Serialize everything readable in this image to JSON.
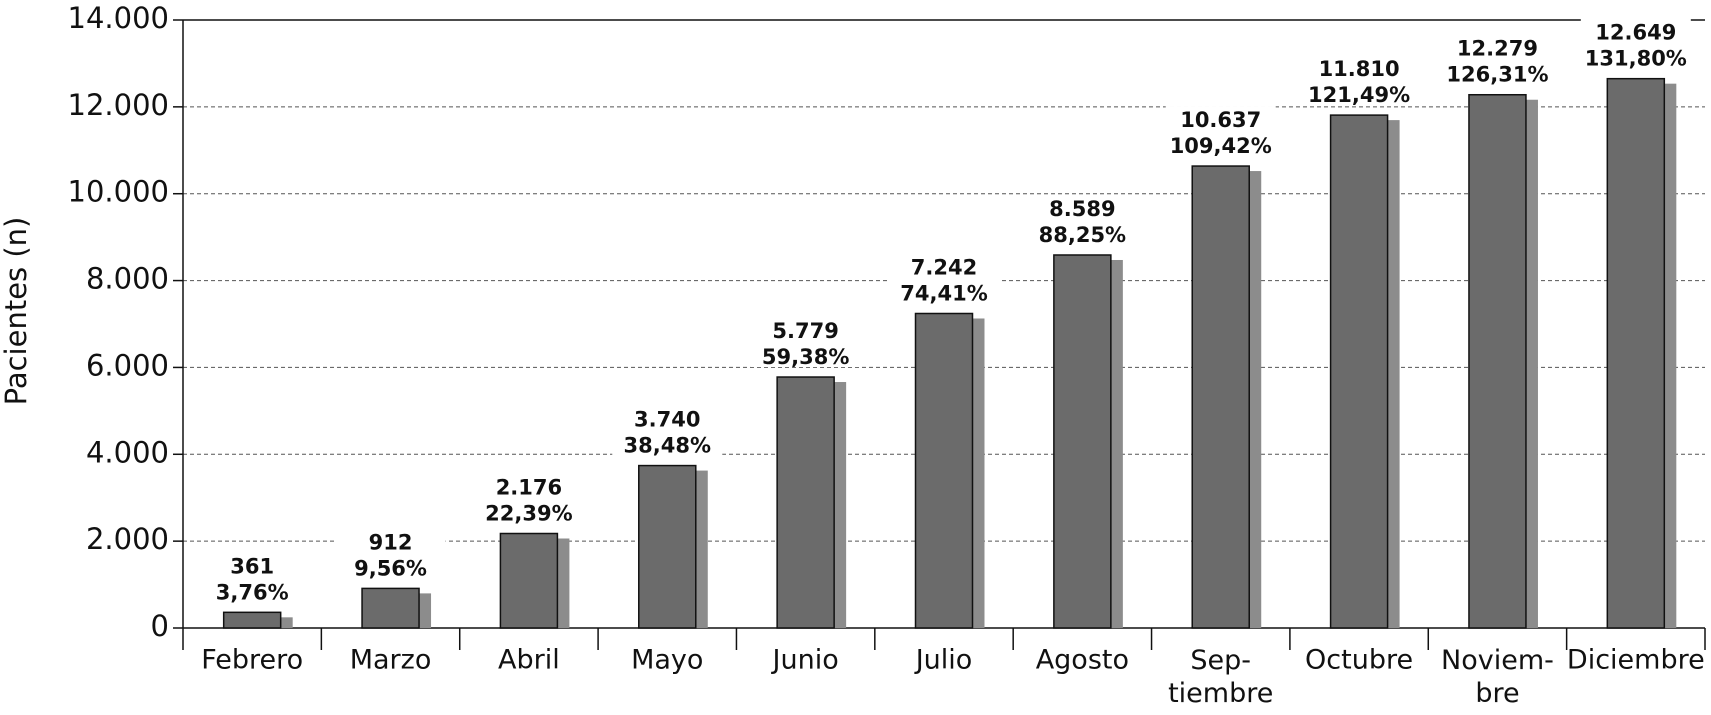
{
  "chart_data": {
    "type": "bar",
    "y_label": "Pacientes (n)",
    "categories": [
      "Febrero",
      "Marzo",
      "Abril",
      "Mayo",
      "Junio",
      "Julio",
      "Agosto",
      "Sep-\ntiembre",
      "Octubre",
      "Noviem-\nbre",
      "Diciembre"
    ],
    "values": [
      361,
      912,
      2176,
      3740,
      5779,
      7242,
      8589,
      10637,
      11810,
      12279,
      12649
    ],
    "value_labels": [
      "361",
      "912",
      "2.176",
      "3.740",
      "5.779",
      "7.242",
      "8.589",
      "10.637",
      "11.810",
      "12.279",
      "12.649"
    ],
    "percent": [
      3.76,
      9.56,
      22.39,
      38.48,
      59.38,
      74.41,
      88.25,
      109.42,
      121.49,
      126.31,
      131.8
    ],
    "percent_labels": [
      "3,76%",
      "9,56%",
      "22,39%",
      "38,48%",
      "59,38%",
      "74,41%",
      "88,25%",
      "109,42%",
      "121,49%",
      "126,31%",
      "131,80%"
    ],
    "color": "#6b6b6b",
    "shadow_color": "#8c8c8c",
    "ylim": [
      0,
      14000
    ],
    "yticks": [
      0,
      {
        "value": 2000,
        "label": "2.000"
      },
      {
        "value": 4000,
        "label": "4.000"
      },
      {
        "value": 6000,
        "label": "6.000"
      },
      {
        "value": 8000,
        "label": "8.000"
      },
      {
        "value": 10000,
        "label": "10.000"
      },
      {
        "value": 12000,
        "label": "12.000"
      },
      {
        "value": 14000,
        "label": "14.000"
      }
    ],
    "grid": true
  }
}
